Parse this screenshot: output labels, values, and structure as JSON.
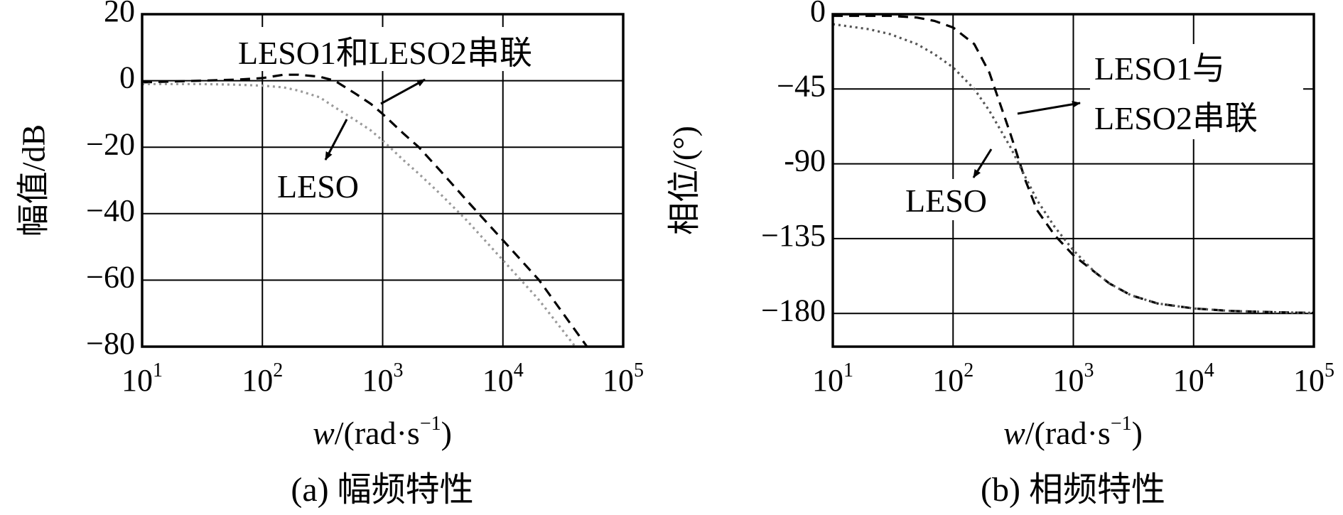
{
  "chart_data": [
    {
      "type": "line",
      "caption": "(a) 幅频特性",
      "xlabel_italic": "w",
      "xlabel_rest": "/(rad·s",
      "xlabel_exp": "−1",
      "xlabel_close": ")",
      "ylabel": "幅值/dB",
      "xscale": "log",
      "xlim": [
        10,
        100000
      ],
      "ylim": [
        -80,
        20
      ],
      "xticks": [
        10,
        100,
        1000,
        10000,
        100000
      ],
      "xtick_base": "10",
      "xtick_exps": [
        "1",
        "2",
        "3",
        "4",
        "5"
      ],
      "yticks": [
        20,
        0,
        -20,
        -40,
        -60,
        -80
      ],
      "ytick_labels": [
        "20",
        "0",
        "−20",
        "−40",
        "−60",
        "−80"
      ],
      "grid": true,
      "series": [
        {
          "name": "LESO1和LESO2串联",
          "style": "dashed",
          "color": "#000000",
          "x": [
            10,
            30,
            60,
            100,
            150,
            200,
            300,
            400,
            600,
            800,
            1000,
            1500,
            2000,
            3000,
            5000,
            10000,
            20000,
            50000
          ],
          "y": [
            -0.5,
            0,
            0.3,
            0.8,
            1.8,
            1.8,
            1.2,
            0,
            -4,
            -7,
            -10,
            -16,
            -20,
            -27,
            -36,
            -48,
            -60,
            -80
          ]
        },
        {
          "name": "LESO",
          "style": "dotted",
          "color": "#9a9a9a",
          "x": [
            10,
            30,
            60,
            100,
            150,
            200,
            300,
            400,
            600,
            800,
            1000,
            1500,
            2000,
            3000,
            5000,
            10000,
            20000,
            40000
          ],
          "y": [
            -1,
            -1,
            -1.2,
            -1.5,
            -2,
            -3,
            -5,
            -8,
            -12,
            -15,
            -18,
            -24,
            -28,
            -34,
            -42,
            -54,
            -66,
            -80
          ]
        }
      ],
      "annotations": [
        {
          "text": "LESO1和LESO2串联",
          "target_series": "LESO1和LESO2串联"
        },
        {
          "text": "LESO",
          "target_series": "LESO"
        }
      ]
    },
    {
      "type": "line",
      "caption": "(b) 相频特性",
      "xlabel_italic": "w",
      "xlabel_rest": "/(rad·s",
      "xlabel_exp": "−1",
      "xlabel_close": ")",
      "ylabel": "相位/(°)",
      "xscale": "log",
      "xlim": [
        10,
        100000
      ],
      "ylim": [
        -200,
        0
      ],
      "xticks": [
        10,
        100,
        1000,
        10000,
        100000
      ],
      "xtick_base": "10",
      "xtick_exps": [
        "1",
        "2",
        "3",
        "4",
        "5"
      ],
      "yticks": [
        0,
        -45,
        -90,
        -135,
        -180
      ],
      "ytick_labels": [
        "0",
        "−45",
        "-90",
        "−135",
        "−180"
      ],
      "grid": true,
      "series": [
        {
          "name": "LESO1与LESO2串联",
          "style": "dashed",
          "color": "#000000",
          "x": [
            10,
            30,
            50,
            70,
            100,
            150,
            200,
            300,
            400,
            500,
            700,
            1000,
            1500,
            2000,
            3000,
            5000,
            10000,
            20000,
            50000,
            100000
          ],
          "y": [
            -1,
            -1,
            -2,
            -4,
            -8,
            -18,
            -35,
            -72,
            -100,
            -118,
            -133,
            -145,
            -155,
            -162,
            -169,
            -174,
            -177,
            -178.5,
            -179.3,
            -179.7
          ]
        },
        {
          "name": "LESO",
          "style": "dotted",
          "color": "#555555",
          "x": [
            10,
            20,
            30,
            50,
            70,
            100,
            150,
            200,
            300,
            400,
            500,
            700,
            1000,
            1500,
            2000,
            3000,
            5000,
            10000,
            20000,
            50000,
            100000
          ],
          "y": [
            -6,
            -9,
            -12,
            -18,
            -24,
            -32,
            -45,
            -58,
            -80,
            -98,
            -112,
            -128,
            -142,
            -155,
            -162,
            -169,
            -174,
            -177,
            -178.5,
            -179.3,
            -179.7
          ]
        }
      ],
      "annotations": [
        {
          "text_line1": "LESO1与",
          "text_line2": "LESO2串联",
          "target_series": "LESO1与LESO2串联"
        },
        {
          "text": "LESO",
          "target_series": "LESO"
        }
      ]
    }
  ]
}
